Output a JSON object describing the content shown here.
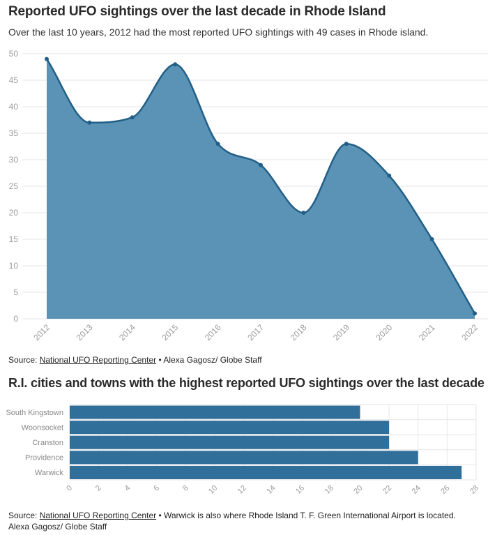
{
  "title": "Reported UFO sightings over the last decade in Rhode Island",
  "subtitle": "Over the last 10 years, 2012 had the most reported UFO sightings with 49 cases in Rhode island.",
  "source1": {
    "prefix": "Source: ",
    "link": "National UFO Reporting Center",
    "suffix": " • Alexa Gagosz/ Globe Staff"
  },
  "title2": "R.I. cities and towns with the highest reported UFO sightings over the last decade",
  "source2": {
    "prefix": "Source: ",
    "link": "National UFO Reporting Center",
    "suffix": " • Warwick is also where Rhode Island T. F. Green International Airport is located.",
    "line2": "Alexa Gagosz/ Globe Staff"
  },
  "colors": {
    "area_fill": "#5b93b6",
    "line": "#225f87",
    "bar": "#2f6f99",
    "grid": "#e6e6e6",
    "tick": "#9a9a9a"
  },
  "chart_data": [
    {
      "type": "area",
      "x": [
        "2012",
        "2013",
        "2014",
        "2015",
        "2016",
        "2017",
        "2018",
        "2019",
        "2020",
        "2021",
        "2022"
      ],
      "values": [
        49,
        37,
        38,
        48,
        33,
        29,
        20,
        33,
        27,
        15,
        1
      ],
      "ylim": [
        0,
        50
      ],
      "yticks": [
        0,
        5,
        10,
        15,
        20,
        25,
        30,
        35,
        40,
        45,
        50
      ],
      "grid": true,
      "curve": "smooth"
    },
    {
      "type": "bar",
      "orientation": "horizontal",
      "categories": [
        "South Kingstown",
        "Woonsocket",
        "Cranston",
        "Providence",
        "Warwick"
      ],
      "values": [
        20,
        22,
        22,
        24,
        27
      ],
      "xlim": [
        0,
        28
      ],
      "xticks": [
        0,
        2,
        4,
        6,
        8,
        10,
        12,
        14,
        16,
        18,
        20,
        22,
        24,
        26,
        28
      ],
      "grid": true
    }
  ]
}
